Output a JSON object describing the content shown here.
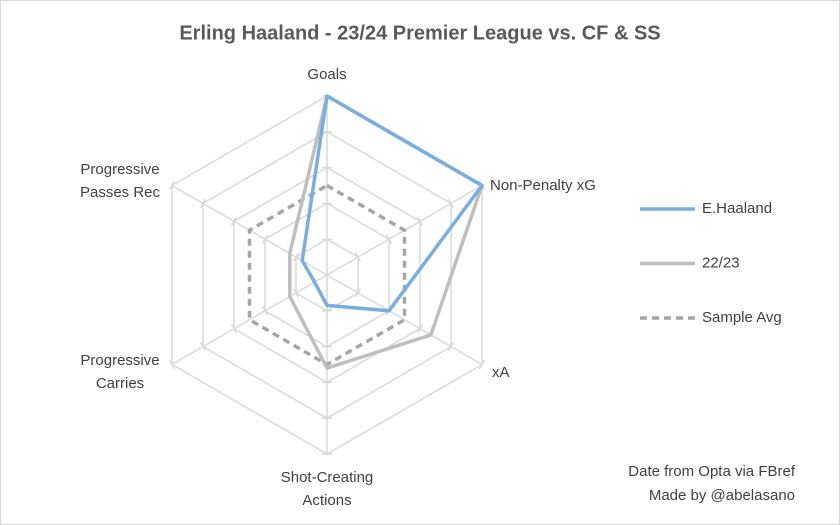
{
  "chart_data": {
    "type": "radar",
    "title": "Erling Haaland  - 23/24 Premier League vs. CF & SS",
    "categories": [
      "Goals",
      "Non-Penalty xG",
      "xA",
      "Shot-Creating Actions",
      "Progressive Carries",
      "Progressive Passes Rec"
    ],
    "series": [
      {
        "name": "E.Haaland",
        "color": "#7aaee0",
        "dash": "solid",
        "values": [
          100,
          100,
          40,
          17,
          8,
          16
        ]
      },
      {
        "name": "22/23",
        "color": "#bfbfbf",
        "dash": "solid",
        "values": [
          100,
          100,
          67,
          52,
          24,
          24
        ]
      },
      {
        "name": "Sample Avg",
        "color": "#a6a6a6",
        "dash": "dashed",
        "values": [
          50,
          50,
          50,
          50,
          50,
          50
        ]
      }
    ],
    "rlim": [
      0,
      100
    ],
    "rticks": [
      20,
      40,
      60,
      80,
      100
    ],
    "grid": true,
    "legend": "right",
    "notes": [
      "Date from Opta via FBref",
      "Made by @abelasano"
    ]
  }
}
